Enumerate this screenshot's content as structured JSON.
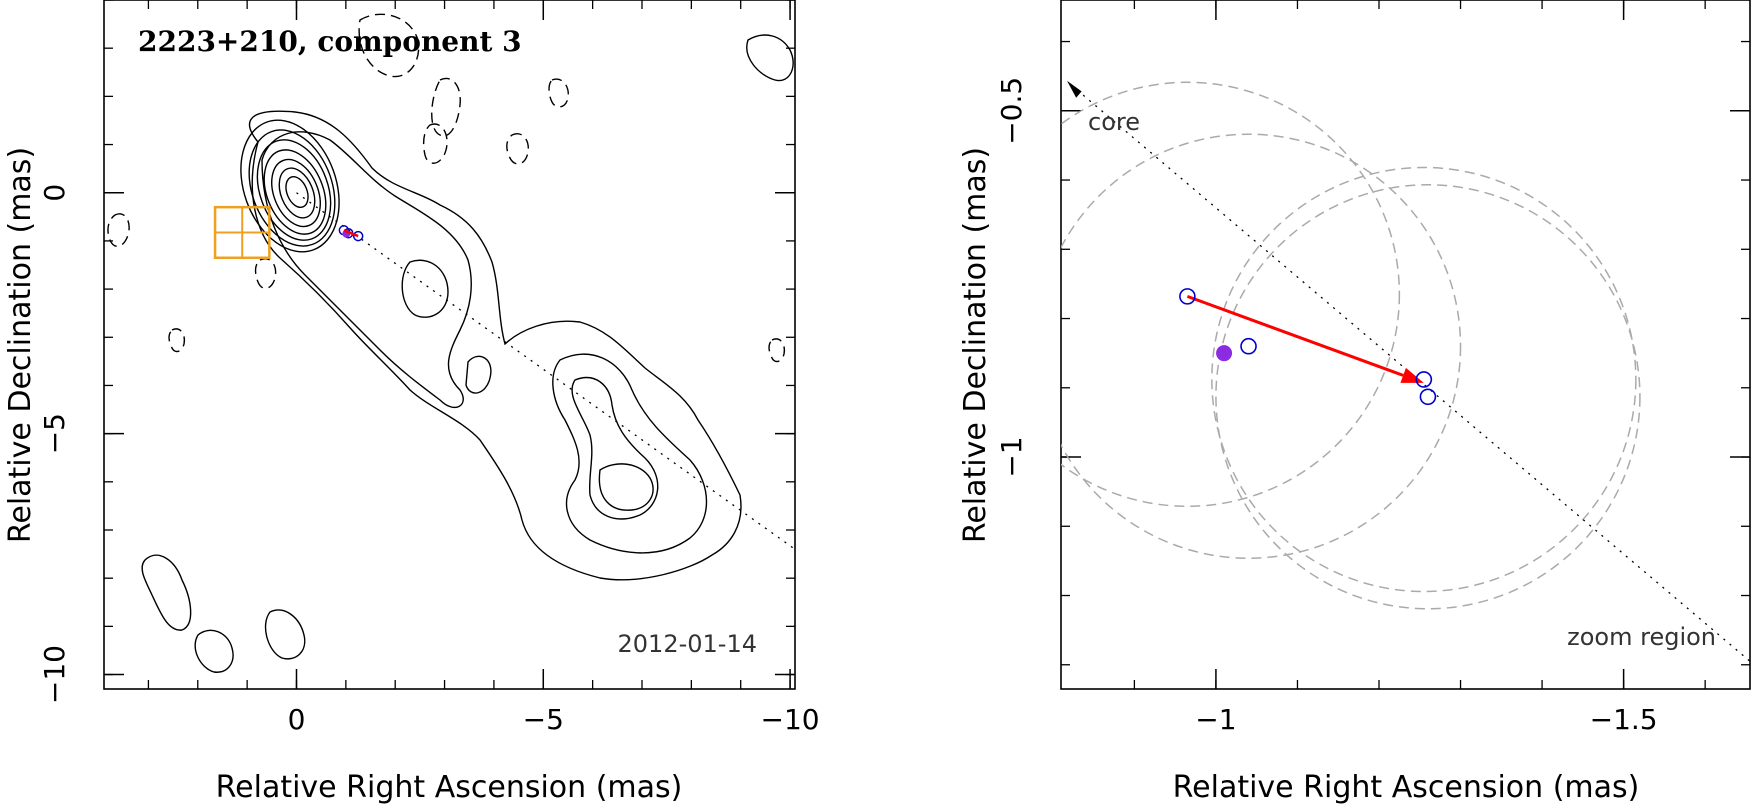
{
  "chart_data": [
    {
      "type": "contour",
      "title": "2223+210, component 3",
      "date_label": "2012-01-14",
      "xlabel": "Relative Right Ascension (mas)",
      "ylabel": "Relative Declination (mas)",
      "xlim": [
        3.9,
        -10.1
      ],
      "ylim": [
        -10.3,
        4.0
      ],
      "x_ticks": [
        0,
        -5,
        -10
      ],
      "y_ticks": [
        0,
        -5,
        -10
      ],
      "x_tick_labels": [
        "0",
        "−5",
        "−10"
      ],
      "y_tick_labels": [
        "0",
        "−5",
        "−10"
      ],
      "components": [
        {
          "x": -0.96,
          "y": -0.78,
          "marker": "circle-open",
          "color": "#0000cc"
        },
        {
          "x": -1.05,
          "y": -0.84,
          "marker": "circle-open",
          "color": "#0000cc"
        },
        {
          "x": -1.25,
          "y": -0.9,
          "marker": "circle-open",
          "color": "#0000cc"
        },
        {
          "x": -1.01,
          "y": -0.85,
          "marker": "circle-filled",
          "color": "#8b2be2"
        }
      ],
      "zoom_box": {
        "x": [
          0.55,
          1.65
        ],
        "y": [
          -0.3,
          -1.35
        ],
        "color": "#f0a020"
      },
      "jet_axis": {
        "from": [
          0,
          0
        ],
        "to": [
          -10.1,
          -7.4
        ]
      }
    },
    {
      "type": "scatter",
      "annotations": {
        "core": "core",
        "zoom": "zoom region"
      },
      "xlabel": "Relative Right Ascension (mas)",
      "ylabel": "Relative Declination (mas)",
      "xlim": [
        -0.81,
        -1.655
      ],
      "ylim": [
        -1.335,
        -0.34
      ],
      "x_ticks": [
        -1,
        -1.5
      ],
      "y_ticks": [
        -0.5,
        -1
      ],
      "x_tick_labels": [
        "−1",
        "−1.5"
      ],
      "y_tick_labels": [
        "−0.5",
        "−1"
      ],
      "points": [
        {
          "x": -0.965,
          "y": -0.768,
          "marker": "circle-open",
          "color": "#0000cc"
        },
        {
          "x": -1.04,
          "y": -0.84,
          "marker": "circle-open",
          "color": "#0000cc"
        },
        {
          "x": -1.255,
          "y": -0.888,
          "marker": "circle-open",
          "color": "#0000cc"
        },
        {
          "x": -1.26,
          "y": -0.913,
          "marker": "circle-open",
          "color": "#0000cc"
        },
        {
          "x": -1.01,
          "y": -0.85,
          "marker": "circle-filled",
          "color": "#8b2be2"
        }
      ],
      "circles": [
        {
          "cx": -0.965,
          "cy": -0.765,
          "r": 0.26
        },
        {
          "cx": -1.04,
          "cy": -0.84,
          "r": 0.26
        },
        {
          "cx": -1.255,
          "cy": -0.888,
          "r": 0.26
        },
        {
          "cx": -1.26,
          "cy": -0.913,
          "r": 0.26
        }
      ],
      "arrow": {
        "from": [
          -0.965,
          -0.768
        ],
        "to": [
          -1.255,
          -0.893
        ],
        "color": "#ff0000"
      },
      "core_axis": {
        "from": [
          -0.81,
          -0.448
        ],
        "to": [
          -1.655,
          -1.295
        ]
      }
    }
  ]
}
